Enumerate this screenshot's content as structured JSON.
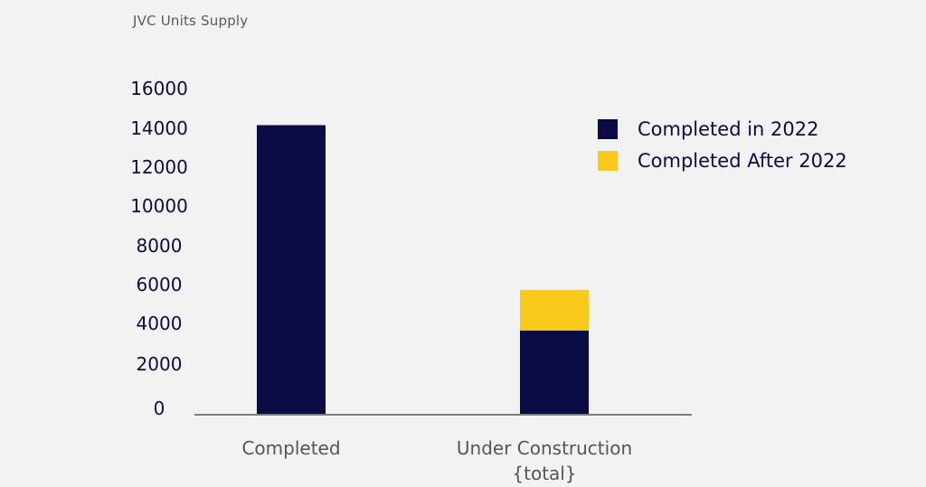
{
  "chart_data": {
    "type": "bar",
    "stacked": true,
    "title": "JVC Units Supply",
    "xlabel": "",
    "ylabel": "",
    "categories": [
      [
        "Completed"
      ],
      [
        "Under Construction",
        "{total}"
      ]
    ],
    "series": [
      {
        "name": "Completed in 2022",
        "color": "#0b0b45",
        "values": [
          14200,
          4100
        ]
      },
      {
        "name": "Completed After 2022",
        "color": "#f8c91a",
        "values": [
          0,
          2000
        ]
      }
    ],
    "yticks": [
      "0",
      "2000",
      "4000",
      "6000",
      "8000",
      "10000",
      "12000",
      "14000",
      "16000"
    ],
    "ylim": [
      0,
      16000
    ],
    "grid": false,
    "legend_position": "top-right"
  }
}
